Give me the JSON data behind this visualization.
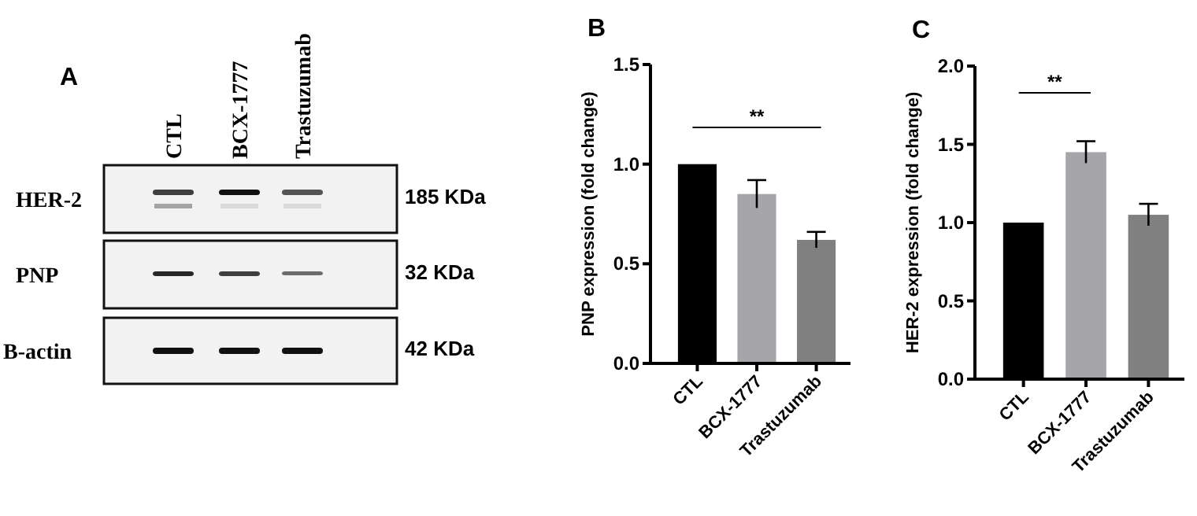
{
  "chart_data": [
    {
      "type": "other",
      "title": "A",
      "annotations": [
        "CTL",
        "BCX-1777",
        "Trastuzumab",
        "HER-2",
        "PNP",
        "B-actin",
        "185 KDa",
        "32 KDa",
        "42 KDa"
      ]
    },
    {
      "type": "bar",
      "title": "B",
      "ylabel": "PNP expression (fold change)",
      "categories": [
        "CTL",
        "BCX-1777",
        "Trastuzumab"
      ],
      "values": [
        1.0,
        0.85,
        0.62
      ],
      "colors": [
        "#000000",
        "#a5a5aa",
        "#808080"
      ],
      "errors": [
        null,
        0.07,
        0.04
      ],
      "ylim": [
        0,
        1.5
      ],
      "yticks": [
        {
          "value": 0,
          "label": "0.0"
        },
        {
          "value": 0.5,
          "label": "0.5"
        },
        {
          "value": 1,
          "label": "1.0"
        },
        {
          "value": 1.5,
          "label": "1.5"
        }
      ],
      "grid": false,
      "annotations": [
        "**"
      ]
    },
    {
      "type": "bar",
      "title": "C",
      "ylabel": "HER-2 expression (fold change)",
      "categories": [
        "CTL",
        "BCX-1777",
        "Trastuzumab"
      ],
      "values": [
        1.0,
        1.45,
        1.05
      ],
      "colors": [
        "#000000",
        "#a5a5aa",
        "#808080"
      ],
      "errors": [
        null,
        0.07,
        0.07
      ],
      "ylim": [
        0,
        2
      ],
      "yticks": [
        {
          "value": 0,
          "label": "0.0"
        },
        {
          "value": 0.5,
          "label": "0.5"
        },
        {
          "value": 1,
          "label": "1.0"
        },
        {
          "value": 1.5,
          "label": "1.5"
        },
        {
          "value": 2,
          "label": "2.0"
        }
      ],
      "grid": false,
      "annotations": [
        "**"
      ]
    }
  ]
}
